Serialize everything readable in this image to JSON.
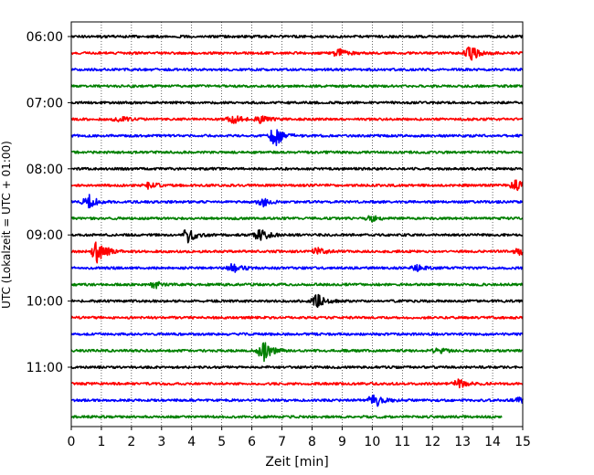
{
  "chart_data": {
    "type": "line",
    "title": "",
    "xlabel": "Zeit  [min]",
    "ylabel": "UTC (Lokalzeit = UTC + 01:00)",
    "xlim": [
      0,
      15
    ],
    "x_ticks": [
      0,
      1,
      2,
      3,
      4,
      5,
      6,
      7,
      8,
      9,
      10,
      11,
      12,
      13,
      14,
      15
    ],
    "y_tick_labels": [
      "06:00",
      "07:00",
      "08:00",
      "09:00",
      "10:00",
      "11:00"
    ],
    "grid": "vertical dotted",
    "legend": "none",
    "trace_colors": [
      "#000000",
      "#ff0000",
      "#0000ff",
      "#008000"
    ],
    "traces": [
      {
        "start": "06:00",
        "color": "#000000",
        "events": []
      },
      {
        "start": "06:15",
        "color": "#ff0000",
        "events": [
          {
            "t": 8.9,
            "amp": 0.5
          },
          {
            "t": 13.3,
            "amp": 0.9
          }
        ]
      },
      {
        "start": "06:30",
        "color": "#0000ff",
        "events": []
      },
      {
        "start": "06:45",
        "color": "#008000",
        "events": []
      },
      {
        "start": "07:00",
        "color": "#000000",
        "events": []
      },
      {
        "start": "07:15",
        "color": "#ff0000",
        "events": [
          {
            "t": 1.6,
            "amp": 0.4
          },
          {
            "t": 5.4,
            "amp": 0.5
          },
          {
            "t": 6.3,
            "amp": 0.4
          }
        ]
      },
      {
        "start": "07:30",
        "color": "#0000ff",
        "events": [
          {
            "t": 6.8,
            "amp": 1.3
          }
        ]
      },
      {
        "start": "07:45",
        "color": "#008000",
        "events": []
      },
      {
        "start": "08:00",
        "color": "#000000",
        "events": []
      },
      {
        "start": "08:15",
        "color": "#ff0000",
        "events": [
          {
            "t": 2.6,
            "amp": 0.4
          },
          {
            "t": 14.8,
            "amp": 0.6
          }
        ]
      },
      {
        "start": "08:30",
        "color": "#0000ff",
        "events": [
          {
            "t": 0.6,
            "amp": 0.9
          },
          {
            "t": 6.4,
            "amp": 0.5
          }
        ]
      },
      {
        "start": "08:45",
        "color": "#008000",
        "events": [
          {
            "t": 10.0,
            "amp": 0.3
          }
        ]
      },
      {
        "start": "09:00",
        "color": "#000000",
        "events": [
          {
            "t": 3.9,
            "amp": 0.9
          },
          {
            "t": 6.3,
            "amp": 0.8
          }
        ]
      },
      {
        "start": "09:15",
        "color": "#ff0000",
        "events": [
          {
            "t": 0.9,
            "amp": 1.6
          },
          {
            "t": 8.2,
            "amp": 0.4
          },
          {
            "t": 14.9,
            "amp": 0.4
          }
        ]
      },
      {
        "start": "09:30",
        "color": "#0000ff",
        "events": [
          {
            "t": 5.4,
            "amp": 0.6
          },
          {
            "t": 11.5,
            "amp": 0.3
          }
        ]
      },
      {
        "start": "09:45",
        "color": "#008000",
        "events": [
          {
            "t": 2.8,
            "amp": 0.4
          }
        ]
      },
      {
        "start": "10:00",
        "color": "#000000",
        "events": [
          {
            "t": 8.2,
            "amp": 0.8
          }
        ]
      },
      {
        "start": "10:15",
        "color": "#ff0000",
        "events": []
      },
      {
        "start": "10:30",
        "color": "#0000ff",
        "events": []
      },
      {
        "start": "10:45",
        "color": "#008000",
        "events": [
          {
            "t": 6.4,
            "amp": 1.3
          },
          {
            "t": 12.2,
            "amp": 0.3
          }
        ]
      },
      {
        "start": "11:00",
        "color": "#000000",
        "events": []
      },
      {
        "start": "11:15",
        "color": "#ff0000",
        "events": [
          {
            "t": 12.9,
            "amp": 0.5
          }
        ]
      },
      {
        "start": "11:30",
        "color": "#0000ff",
        "events": [
          {
            "t": 10.1,
            "amp": 0.9
          },
          {
            "t": 14.9,
            "amp": 0.3
          }
        ]
      },
      {
        "start": "11:45",
        "color": "#008000",
        "events": [],
        "end_min": 14.3
      }
    ]
  }
}
